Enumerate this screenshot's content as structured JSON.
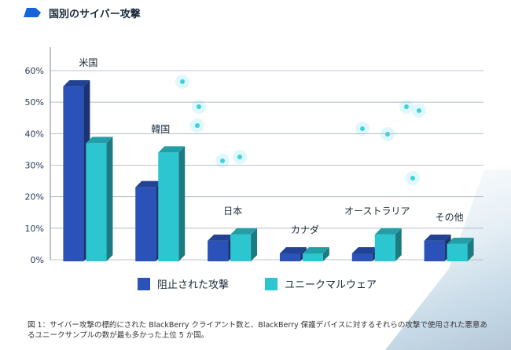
{
  "header": {
    "title": "国別のサイバー攻撃"
  },
  "colors": {
    "blocked": "#2b52b8",
    "malware": "#2bc6cf",
    "accent": "#1565d8"
  },
  "legend": {
    "blocked": "阻止された攻撃",
    "malware": "ユニークマルウェア"
  },
  "caption": "図 1：サイバー攻撃の標的にされた BlackBerry クライアント数と、BlackBerry 保護デバイスに対するそれらの攻撃で使用された悪意あるユニークサンプルの数が最も多かった上位 5 か国。",
  "chart_data": {
    "type": "bar",
    "categories": [
      "米国",
      "韓国",
      "日本",
      "カナダ",
      "オーストラリア",
      "その他"
    ],
    "series": [
      {
        "name": "阻止された攻撃",
        "values": [
          55,
          23,
          6,
          2,
          2,
          6
        ]
      },
      {
        "name": "ユニークマルウェア",
        "values": [
          37,
          34,
          8,
          2,
          8,
          5
        ]
      }
    ],
    "ylim": [
      0,
      60
    ],
    "yticks": [
      "0%",
      "10%",
      "20%",
      "30%",
      "40%",
      "50%",
      "60%"
    ],
    "grid": true,
    "legend_position": "bottom"
  }
}
